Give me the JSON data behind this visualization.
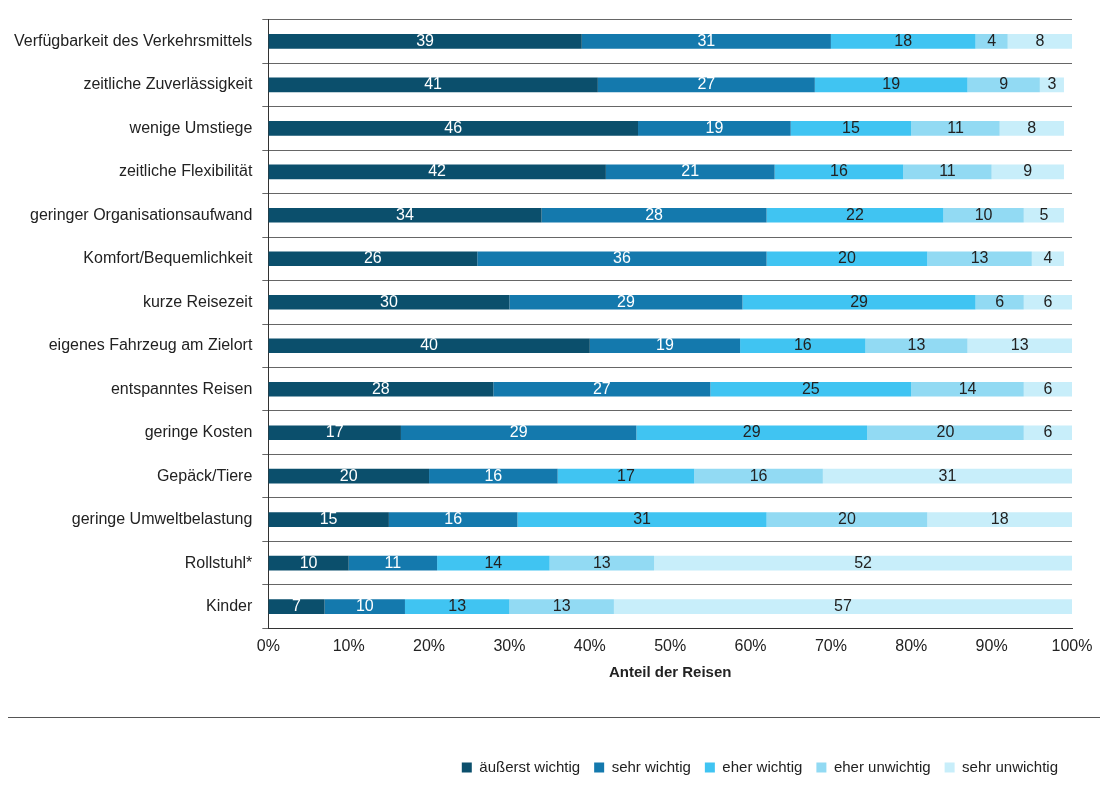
{
  "chart_data": {
    "type": "bar",
    "orientation": "horizontal",
    "stacked": true,
    "grid": "y",
    "legend": "bottom right",
    "xlabel": "Anteil der Reisen",
    "categories": [
      "Verfügbarkeit des Verkehrsmittels",
      "zeitliche Zuverlässigkeit",
      "wenige Umstiege",
      "zeitliche Flexibilität",
      "geringer Organisationsaufwand",
      "Komfort/Bequemlichkeit",
      "kurze Reisezeit",
      "eigenes Fahrzeug am Zielort",
      "entspanntes Reisen",
      "geringe Kosten",
      "Gepäck/Tiere",
      "geringe Umweltbelastung",
      "Rollstuhl*",
      "Kinder"
    ],
    "series": [
      {
        "name": "äußerst wichtig",
        "color": "#0b4f6c",
        "values": [
          39,
          41,
          46,
          42,
          34,
          26,
          30,
          40,
          28,
          16.5,
          20,
          15,
          10,
          7
        ],
        "value_labels": [
          "39",
          "41",
          "46",
          "42",
          "34",
          "26",
          "30",
          "40",
          "28",
          "17",
          "20",
          "15",
          "10",
          "7"
        ]
      },
      {
        "name": "sehr wichtig",
        "color": "#1479ad",
        "values": [
          31,
          27,
          19,
          21,
          28,
          36,
          29,
          18.7,
          27,
          29.3,
          16,
          16,
          11,
          10
        ],
        "value_labels": [
          "31",
          "27",
          "19",
          "21",
          "28",
          "36",
          "29",
          "19",
          "27",
          "29",
          "16",
          "16",
          "11",
          "10"
        ]
      },
      {
        "name": "eher wichtig",
        "color": "#40c4f2",
        "values": [
          18,
          19,
          15,
          16,
          22,
          20,
          29,
          15.6,
          25,
          28.7,
          17,
          31,
          14,
          13
        ],
        "value_labels": [
          "18",
          "19",
          "15",
          "16",
          "22",
          "20",
          "29",
          "16",
          "25",
          "29",
          "17",
          "31",
          "14",
          "13"
        ]
      },
      {
        "name": "eher unwichtig",
        "color": "#92daf3",
        "values": [
          4,
          9,
          11,
          11,
          10,
          13,
          6,
          12.7,
          14,
          19.5,
          16,
          20,
          13,
          13
        ],
        "value_labels": [
          "4",
          "9",
          "11",
          "11",
          "10",
          "13",
          "6",
          "13",
          "14",
          "20",
          "16",
          "20",
          "13",
          "13"
        ]
      },
      {
        "name": "sehr unwichtig",
        "color": "#c8eefa",
        "values": [
          8,
          3,
          8,
          9,
          5,
          4,
          6,
          13,
          6,
          6,
          31,
          18,
          52,
          57
        ],
        "value_labels": [
          "8",
          "3",
          "8",
          "9",
          "5",
          "4",
          "6",
          "13",
          "6",
          "6",
          "31",
          "18",
          "52",
          "57"
        ]
      }
    ],
    "xlim": [
      0,
      100
    ],
    "xticks": [
      {
        "value": 0,
        "label": "0%"
      },
      {
        "value": 10,
        "label": "10%"
      },
      {
        "value": 20,
        "label": "20%"
      },
      {
        "value": 30,
        "label": "30%"
      },
      {
        "value": 40,
        "label": "40%"
      },
      {
        "value": 50,
        "label": "50%"
      },
      {
        "value": 60,
        "label": "60%"
      },
      {
        "value": 70,
        "label": "70%"
      },
      {
        "value": 80,
        "label": "80%"
      },
      {
        "value": 90,
        "label": "90%"
      },
      {
        "value": 100,
        "label": "100%"
      }
    ]
  }
}
